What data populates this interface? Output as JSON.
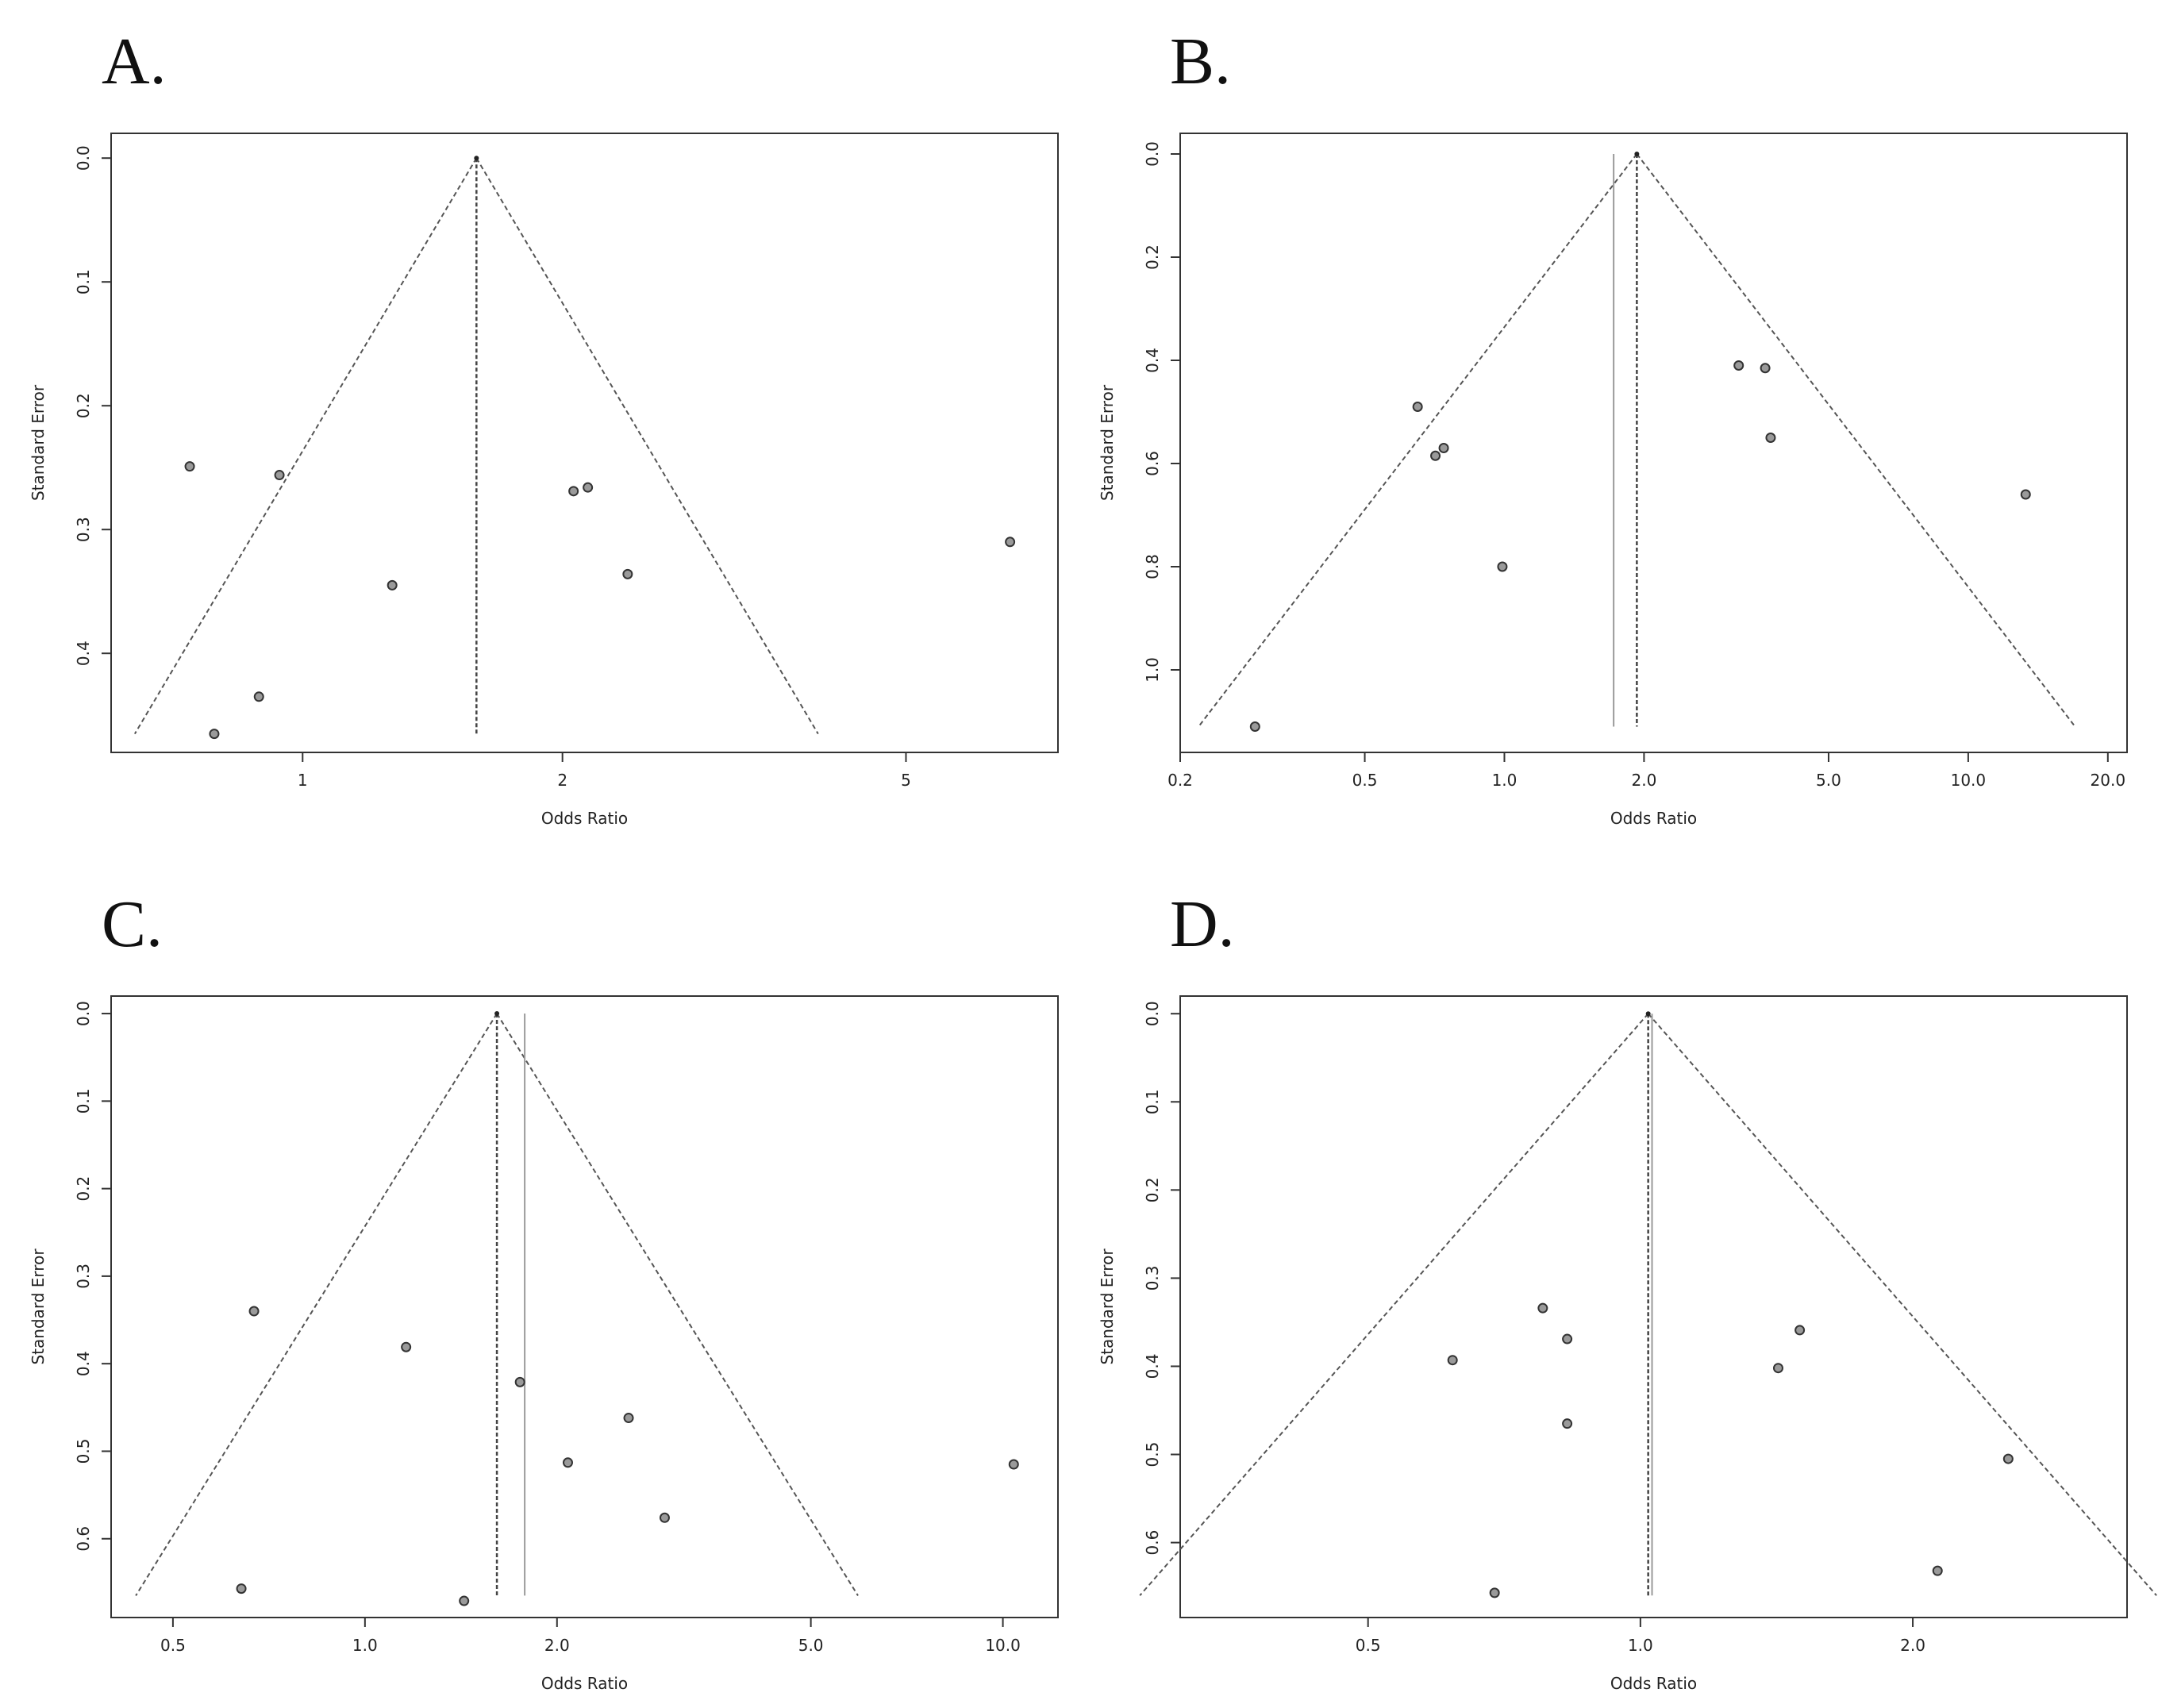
{
  "figure": {
    "colors": {
      "axis": "#333333",
      "funnel": "#555555",
      "point_fill": "#9a9a9a",
      "alt_line": "#9a9a9a"
    }
  },
  "chart_data": [
    {
      "panel": "A.",
      "type": "scatter",
      "title": "",
      "xlabel": "Odds Ratio",
      "ylabel": "Standard Error",
      "x_scale": "log",
      "xlim": [
        0.6,
        7.5
      ],
      "xticks": [
        1,
        2,
        5
      ],
      "xtick_labels": [
        "1",
        "2",
        "5"
      ],
      "ylim": [
        0.48,
        -0.02
      ],
      "yticks": [
        0.0,
        0.1,
        0.2,
        0.3,
        0.4
      ],
      "ytick_labels": [
        "0.0",
        "0.1",
        "0.2",
        "0.3",
        "0.4"
      ],
      "pooled_or": 1.59,
      "alt_or": null,
      "funnel_max_se": 0.465,
      "points": [
        {
          "x": 0.74,
          "y": 0.249
        },
        {
          "x": 0.94,
          "y": 0.256
        },
        {
          "x": 0.79,
          "y": 0.465
        },
        {
          "x": 0.89,
          "y": 0.435
        },
        {
          "x": 1.27,
          "y": 0.345
        },
        {
          "x": 2.06,
          "y": 0.269
        },
        {
          "x": 2.14,
          "y": 0.266
        },
        {
          "x": 2.38,
          "y": 0.336
        },
        {
          "x": 6.6,
          "y": 0.31
        }
      ]
    },
    {
      "panel": "B.",
      "type": "scatter",
      "title": "",
      "xlabel": "Odds Ratio",
      "ylabel": "Standard Error",
      "x_scale": "log",
      "xlim": [
        0.2,
        22
      ],
      "xticks": [
        0.2,
        0.5,
        1.0,
        2.0,
        5.0,
        10.0,
        20.0
      ],
      "xtick_labels": [
        "0.2",
        "0.5",
        "1.0",
        "2.0",
        "5.0",
        "10.0",
        "20.0"
      ],
      "ylim": [
        1.16,
        -0.04
      ],
      "yticks": [
        0.0,
        0.2,
        0.4,
        0.6,
        0.8,
        1.0
      ],
      "ytick_labels": [
        "0.0",
        "0.2",
        "0.4",
        "0.6",
        "0.8",
        "1.0"
      ],
      "pooled_or": 1.93,
      "alt_or": 1.72,
      "funnel_max_se": 1.11,
      "points": [
        {
          "x": 0.29,
          "y": 1.11
        },
        {
          "x": 0.65,
          "y": 0.49
        },
        {
          "x": 0.71,
          "y": 0.585
        },
        {
          "x": 0.74,
          "y": 0.57
        },
        {
          "x": 0.99,
          "y": 0.8
        },
        {
          "x": 3.2,
          "y": 0.41
        },
        {
          "x": 3.65,
          "y": 0.415
        },
        {
          "x": 3.75,
          "y": 0.55
        },
        {
          "x": 13.3,
          "y": 0.66
        }
      ]
    },
    {
      "panel": "C.",
      "type": "scatter",
      "title": "",
      "xlabel": "Odds Ratio",
      "ylabel": "Standard Error",
      "x_scale": "log",
      "xlim": [
        0.4,
        12.2
      ],
      "xticks": [
        0.5,
        1.0,
        2.0,
        5.0,
        10.0
      ],
      "xtick_labels": [
        "0.5",
        "1.0",
        "2.0",
        "5.0",
        "10.0"
      ],
      "ylim": [
        0.69,
        -0.02
      ],
      "yticks": [
        0.0,
        0.1,
        0.2,
        0.3,
        0.4,
        0.5,
        0.6
      ],
      "ytick_labels": [
        "0.0",
        "0.1",
        "0.2",
        "0.3",
        "0.4",
        "0.5",
        "0.6"
      ],
      "pooled_or": 1.61,
      "alt_or": 1.78,
      "funnel_max_se": 0.665,
      "points": [
        {
          "x": 0.67,
          "y": 0.34
        },
        {
          "x": 0.64,
          "y": 0.657
        },
        {
          "x": 1.16,
          "y": 0.381
        },
        {
          "x": 1.43,
          "y": 0.671
        },
        {
          "x": 1.75,
          "y": 0.421
        },
        {
          "x": 2.08,
          "y": 0.513
        },
        {
          "x": 2.59,
          "y": 0.462
        },
        {
          "x": 2.95,
          "y": 0.576
        },
        {
          "x": 10.4,
          "y": 0.515
        }
      ]
    },
    {
      "panel": "D.",
      "type": "scatter",
      "title": "",
      "xlabel": "Odds Ratio",
      "ylabel": "Standard Error",
      "x_scale": "log",
      "xlim": [
        0.31,
        3.45
      ],
      "xticks": [
        0.5,
        1.0,
        2.0
      ],
      "xtick_labels": [
        "0.5",
        "1.0",
        "2.0"
      ],
      "ylim": [
        0.685,
        -0.02
      ],
      "yticks": [
        0.0,
        0.1,
        0.2,
        0.3,
        0.4,
        0.5,
        0.6
      ],
      "ytick_labels": [
        "0.0",
        "0.1",
        "0.2",
        "0.3",
        "0.4",
        "0.5",
        "0.6"
      ],
      "pooled_or": 1.02,
      "alt_or": 1.03,
      "funnel_max_se": 0.66,
      "points": [
        {
          "x": 0.62,
          "y": 0.393
        },
        {
          "x": 0.69,
          "y": 0.657
        },
        {
          "x": 0.78,
          "y": 0.334
        },
        {
          "x": 0.83,
          "y": 0.369
        },
        {
          "x": 0.83,
          "y": 0.465
        },
        {
          "x": 1.42,
          "y": 0.402
        },
        {
          "x": 1.5,
          "y": 0.359
        },
        {
          "x": 2.13,
          "y": 0.632
        },
        {
          "x": 2.55,
          "y": 0.505
        }
      ]
    }
  ]
}
